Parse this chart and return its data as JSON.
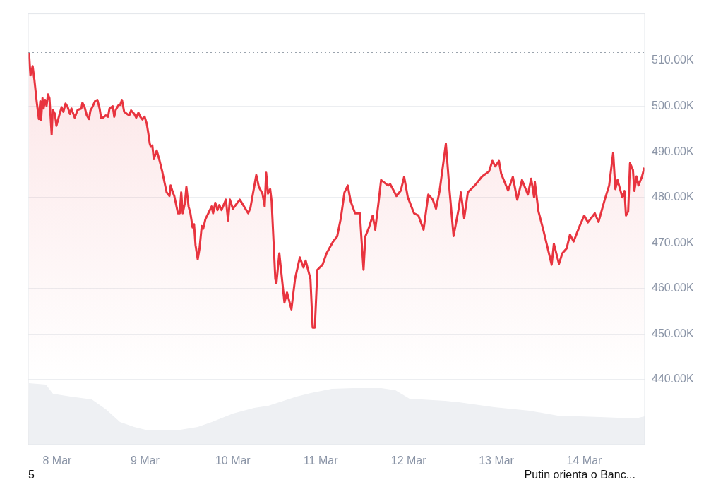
{
  "chart_data": {
    "type": "area",
    "xlim": [
      "--03-07T16:06",
      "--03-14T16:30"
    ],
    "ylim": [
      425700,
      520300
    ],
    "xticks": [
      {
        "value": "--03-08",
        "label": "8 Mar"
      },
      {
        "value": "--03-09",
        "label": "9 Mar"
      },
      {
        "value": "--03-10",
        "label": "10 Mar"
      },
      {
        "value": "--03-11",
        "label": "11 Mar"
      },
      {
        "value": "--03-12",
        "label": "12 Mar"
      },
      {
        "value": "--03-13",
        "label": "13 Mar"
      },
      {
        "value": "--03-14",
        "label": "14 Mar"
      }
    ],
    "yticks": [
      {
        "value": 440000,
        "label": "440.00K"
      },
      {
        "value": 450000,
        "label": "450.00K"
      },
      {
        "value": 460000,
        "label": "460.00K"
      },
      {
        "value": 470000,
        "label": "470.00K"
      },
      {
        "value": 480000,
        "label": "480.00K"
      },
      {
        "value": 490000,
        "label": "490.00K"
      },
      {
        "value": 500000,
        "label": "500.00K"
      },
      {
        "value": 510000,
        "label": "510.00K"
      }
    ],
    "grid": "y",
    "ref_lines": [
      {
        "axis": "y",
        "value": 511800,
        "label": null,
        "color": "#9aa3ad",
        "line_style": "dotted"
      }
    ],
    "annotations": [
      "5",
      "Putin orienta o Banc..."
    ],
    "series": [
      {
        "color": "#e8343f",
        "x": [
          "--03-07T16:18",
          "--03-07T16:42",
          "--03-07T17:18",
          "--03-07T17:48",
          "--03-07T18:24",
          "--03-07T19:00",
          "--03-07T19:24",
          "--03-07T19:36",
          "--03-07T20:00",
          "--03-07T20:18",
          "--03-07T20:42",
          "--03-07T21:06",
          "--03-07T21:30",
          "--03-07T21:54",
          "--03-07T22:30",
          "--03-07T22:48",
          "--03-07T23:24",
          "--03-07T23:48",
          "--03-08T00:24",
          "--03-08T01:12",
          "--03-08T01:42",
          "--03-08T02:18",
          "--03-08T02:54",
          "--03-08T03:30",
          "--03-08T03:54",
          "--03-08T04:12",
          "--03-08T04:48",
          "--03-08T05:36",
          "--03-08T06:36",
          "--03-08T06:54",
          "--03-08T07:30",
          "--03-08T08:06",
          "--03-08T08:42",
          "--03-08T09:06",
          "--03-08T09:36",
          "--03-08T10:24",
          "--03-08T11:00",
          "--03-08T11:36",
          "--03-08T12:00",
          "--03-08T12:30",
          "--03-08T13:18",
          "--03-08T13:54",
          "--03-08T14:18",
          "--03-08T15:12",
          "--03-08T15:36",
          "--03-08T16:00",
          "--03-08T16:48",
          "--03-08T17:12",
          "--03-08T17:42",
          "--03-08T18:18",
          "--03-08T19:06",
          "--03-08T19:42",
          "--03-08T20:12",
          "--03-08T21:00",
          "--03-08T21:36",
          "--03-08T22:12",
          "--03-08T22:42",
          "--03-08T23:18",
          "--03-08T23:54",
          "--03-09T00:30",
          "--03-09T00:54",
          "--03-09T01:18",
          "--03-09T01:36",
          "--03-09T02:00",
          "--03-09T02:24",
          "--03-09T03:12",
          "--03-09T04:00",
          "--03-09T04:42",
          "--03-09T05:18",
          "--03-09T05:54",
          "--03-09T06:42",
          "--03-09T07:00",
          "--03-09T07:36",
          "--03-09T08:00",
          "--03-09T08:36",
          "--03-09T09:00",
          "--03-09T09:30",
          "--03-09T09:54",
          "--03-09T10:18",
          "--03-09T10:54",
          "--03-09T11:18",
          "--03-09T11:54",
          "--03-09T12:24",
          "--03-09T13:00",
          "--03-09T13:24",
          "--03-09T13:48",
          "--03-09T14:24",
          "--03-09T14:54",
          "--03-09T15:30",
          "--03-09T15:54",
          "--03-09T16:30",
          "--03-09T17:18",
          "--03-09T18:12",
          "--03-09T18:36",
          "--03-09T19:12",
          "--03-09T19:48",
          "--03-09T20:18",
          "--03-09T20:54",
          "--03-09T22:06",
          "--03-09T22:42",
          "--03-09T23:12",
          "--03-10T00:00",
          "--03-10T01:54",
          "--03-10T04:12",
          "--03-10T04:48",
          "--03-10T06:24",
          "--03-10T07:06",
          "--03-10T08:06",
          "--03-10T08:42",
          "--03-10T09:06",
          "--03-10T09:36",
          "--03-10T10:12",
          "--03-10T10:36",
          "--03-10T11:36",
          "--03-10T11:54",
          "--03-10T12:42",
          "--03-10T14:06",
          "--03-10T14:48",
          "--03-10T16:00",
          "--03-10T17:00",
          "--03-10T18:18",
          "--03-10T19:18",
          "--03-10T19:54",
          "--03-10T21:12",
          "--03-10T21:48",
          "--03-10T22:24",
          "--03-10T23:06",
          "--03-11T00:30",
          "--03-11T01:36",
          "--03-11T03:24",
          "--03-11T04:30",
          "--03-11T05:30",
          "--03-11T06:30",
          "--03-11T07:24",
          "--03-11T08:12",
          "--03-11T09:24",
          "--03-11T10:42",
          "--03-11T11:06",
          "--03-11T11:42",
          "--03-11T12:12",
          "--03-11T13:12",
          "--03-11T14:12",
          "--03-11T14:54",
          "--03-11T15:54",
          "--03-11T16:30",
          "--03-11T18:24",
          "--03-11T19:00",
          "--03-11T20:42",
          "--03-11T21:54",
          "--03-11T22:48",
          "--03-11T23:48",
          "--03-12T01:30",
          "--03-12T02:42",
          "--03-12T04:06",
          "--03-12T05:24",
          "--03-12T06:36",
          "--03-12T07:30",
          "--03-12T08:30",
          "--03-12T10:12",
          "--03-12T11:12",
          "--03-12T12:18",
          "--03-12T13:42",
          "--03-12T14:18",
          "--03-12T15:12",
          "--03-12T16:12",
          "--03-12T18:06",
          "--03-12T20:06",
          "--03-12T22:00",
          "--03-12T22:54",
          "--03-12T23:42",
          "--03-13T00:42",
          "--03-13T01:18",
          "--03-13T03:12",
          "--03-13T04:30",
          "--03-13T05:42",
          "--03-13T07:00",
          "--03-13T08:36",
          "--03-13T09:30",
          "--03-13T10:18",
          "--03-13T10:30",
          "--03-13T11:30",
          "--03-13T12:48",
          "--03-13T15:06",
          "--03-13T15:42",
          "--03-13T17:06",
          "--03-13T18:00",
          "--03-13T19:12",
          "--03-13T20:06",
          "--03-13T21:06",
          "--03-13T22:48",
          "--03-14T00:00",
          "--03-14T01:00",
          "--03-14T02:54",
          "--03-14T03:54",
          "--03-14T05:36",
          "--03-14T06:48",
          "--03-14T07:54",
          "--03-14T08:30",
          "--03-14T09:06",
          "--03-14T10:24",
          "--03-14T11:00",
          "--03-14T11:24",
          "--03-14T12:00",
          "--03-14T12:30",
          "--03-14T13:18",
          "--03-14T13:42",
          "--03-14T14:18",
          "--03-14T14:48",
          "--03-14T15:48",
          "--03-14T16:24"
        ],
        "values": [
          511800,
          506800,
          508800,
          505700,
          501100,
          497200,
          501100,
          496900,
          501800,
          499500,
          501400,
          500100,
          502600,
          501800,
          493800,
          499200,
          498300,
          495700,
          497500,
          499800,
          498800,
          500600,
          499800,
          498300,
          499500,
          498800,
          497500,
          499200,
          499500,
          500800,
          499800,
          498000,
          497200,
          499100,
          499800,
          501200,
          501400,
          499500,
          497500,
          497500,
          498000,
          497700,
          499500,
          500000,
          497700,
          499200,
          500300,
          500300,
          501400,
          498800,
          498300,
          498000,
          499100,
          498400,
          497500,
          498600,
          497700,
          497100,
          497700,
          496100,
          494100,
          491800,
          491100,
          491400,
          488400,
          490300,
          488000,
          485700,
          483400,
          481100,
          480300,
          482600,
          481100,
          480300,
          478000,
          476500,
          476500,
          481100,
          476500,
          478800,
          482300,
          478000,
          476500,
          473400,
          474100,
          469500,
          466400,
          468800,
          473700,
          473100,
          475200,
          476500,
          478000,
          476500,
          478800,
          477200,
          478300,
          477200,
          479500,
          474900,
          479500,
          477500,
          479500,
          476500,
          477700,
          484900,
          482300,
          480800,
          478000,
          485400,
          480800,
          481800,
          479100,
          462100,
          461100,
          467700,
          456900,
          459100,
          455400,
          462100,
          466800,
          464600,
          466100,
          462100,
          451400,
          451400,
          464100,
          465200,
          467700,
          470300,
          471400,
          475400,
          481100,
          482600,
          479100,
          476500,
          476500,
          471400,
          464100,
          471400,
          473400,
          476000,
          472900,
          479500,
          483800,
          482600,
          482900,
          480300,
          481500,
          484500,
          480000,
          476500,
          476000,
          472900,
          480600,
          479500,
          477500,
          481500,
          491800,
          481500,
          471500,
          477500,
          481100,
          475400,
          481100,
          482600,
          484600,
          485700,
          488000,
          486800,
          488000,
          485200,
          481500,
          484500,
          479500,
          483800,
          480600,
          484100,
          480000,
          483400,
          476900,
          472900,
          465200,
          469800,
          465400,
          467700,
          468800,
          471800,
          470300,
          473800,
          476000,
          474500,
          476500,
          474600,
          479500,
          482600,
          489800,
          481800,
          483800,
          480000,
          481400,
          476000,
          476900,
          487500,
          486000,
          481400,
          484600,
          482600,
          484600,
          486500
        ]
      }
    ]
  }
}
